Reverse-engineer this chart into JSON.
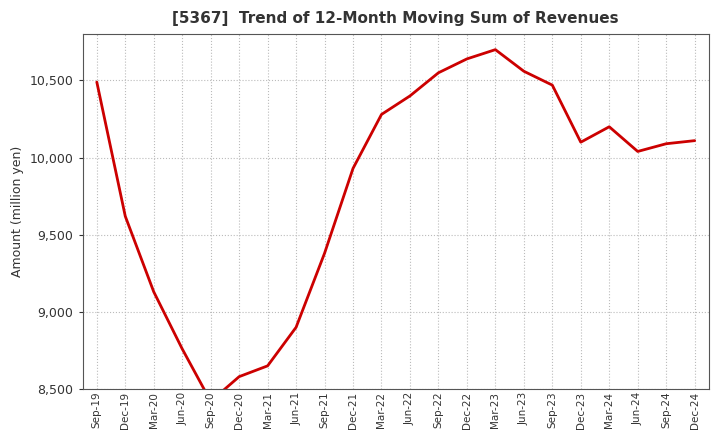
{
  "title": "[5367]  Trend of 12-Month Moving Sum of Revenues",
  "ylabel": "Amount (million yen)",
  "line_color": "#cc0000",
  "background_color": "#ffffff",
  "plot_bg_color": "#ffffff",
  "grid_color": "#bbbbbb",
  "ylim": [
    8500,
    10800
  ],
  "yticks": [
    8500,
    9000,
    9500,
    10000,
    10500
  ],
  "title_color": "#333333",
  "labels": [
    "Sep-19",
    "Dec-19",
    "Mar-20",
    "Jun-20",
    "Sep-20",
    "Dec-20",
    "Mar-21",
    "Jun-21",
    "Sep-21",
    "Dec-21",
    "Mar-22",
    "Jun-22",
    "Sep-22",
    "Dec-22",
    "Mar-23",
    "Jun-23",
    "Sep-23",
    "Dec-23",
    "Mar-24",
    "Jun-24",
    "Sep-24",
    "Dec-24"
  ],
  "values": [
    10490,
    9620,
    9130,
    8760,
    8420,
    8580,
    8650,
    8900,
    9380,
    9930,
    10280,
    10400,
    10550,
    10640,
    10700,
    10560,
    10470,
    10100,
    10200,
    10040,
    10090,
    10110
  ]
}
